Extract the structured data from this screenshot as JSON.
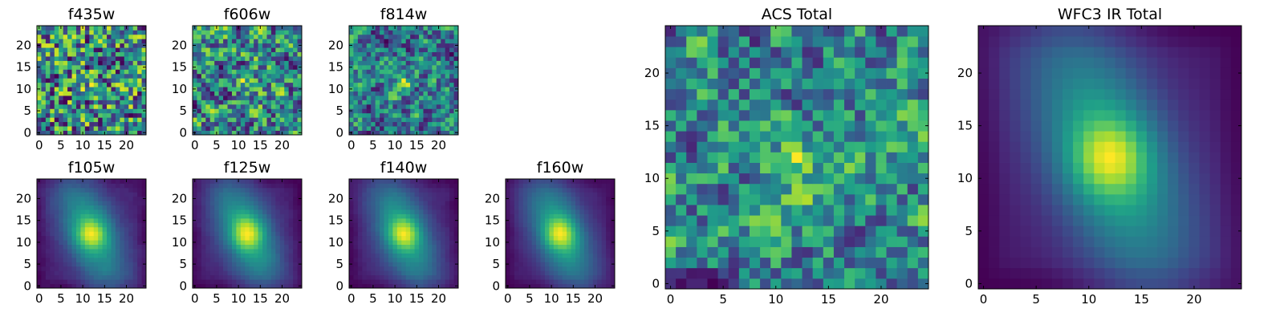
{
  "chart_data": [
    {
      "type": "heatmap",
      "title": "f435w",
      "grid_size": 25,
      "pattern": "noise",
      "smoothness": 0,
      "center": [
        12,
        11
      ],
      "brightness": 0.2,
      "seed": 11,
      "xticks": [
        "0",
        "5",
        "10",
        "15",
        "20"
      ],
      "yticks": [
        "0",
        "5",
        "10",
        "15",
        "20"
      ],
      "xlim": [
        -0.5,
        24.5
      ],
      "ylim": [
        -0.5,
        24.5
      ],
      "colormap": "viridis"
    },
    {
      "type": "heatmap",
      "title": "f606w",
      "grid_size": 25,
      "pattern": "noise",
      "smoothness": 0.35,
      "center": [
        12,
        11
      ],
      "brightness": 0.4,
      "seed": 23,
      "xticks": [
        "0",
        "5",
        "10",
        "15",
        "20"
      ],
      "yticks": [
        "0",
        "5",
        "10",
        "15",
        "20"
      ],
      "xlim": [
        -0.5,
        24.5
      ],
      "ylim": [
        -0.5,
        24.5
      ],
      "colormap": "viridis"
    },
    {
      "type": "heatmap",
      "title": "f814w",
      "grid_size": 25,
      "pattern": "noise",
      "smoothness": 0.45,
      "center": [
        12,
        11
      ],
      "brightness": 0.6,
      "seed": 37,
      "xticks": [
        "0",
        "5",
        "10",
        "15",
        "20"
      ],
      "yticks": [
        "0",
        "5",
        "10",
        "15",
        "20"
      ],
      "xlim": [
        -0.5,
        24.5
      ],
      "ylim": [
        -0.5,
        24.5
      ],
      "colormap": "viridis"
    },
    {
      "type": "heatmap",
      "title": "f105w",
      "grid_size": 25,
      "pattern": "galaxy",
      "smoothness": 0.8,
      "center": [
        12,
        12
      ],
      "brightness": 1,
      "seed": 41,
      "xticks": [
        "0",
        "5",
        "10",
        "15",
        "20"
      ],
      "yticks": [
        "0",
        "5",
        "10",
        "15",
        "20"
      ],
      "xlim": [
        -0.5,
        24.5
      ],
      "ylim": [
        -0.5,
        24.5
      ],
      "colormap": "viridis"
    },
    {
      "type": "heatmap",
      "title": "f125w",
      "grid_size": 25,
      "pattern": "galaxy",
      "smoothness": 0.85,
      "center": [
        12,
        12
      ],
      "brightness": 1,
      "seed": 53,
      "xticks": [
        "0",
        "5",
        "10",
        "15",
        "20"
      ],
      "yticks": [
        "0",
        "5",
        "10",
        "15",
        "20"
      ],
      "xlim": [
        -0.5,
        24.5
      ],
      "ylim": [
        -0.5,
        24.5
      ],
      "colormap": "viridis"
    },
    {
      "type": "heatmap",
      "title": "f140w",
      "grid_size": 25,
      "pattern": "galaxy",
      "smoothness": 0.85,
      "center": [
        12,
        12
      ],
      "brightness": 1,
      "seed": 67,
      "xticks": [
        "0",
        "5",
        "10",
        "15",
        "20"
      ],
      "yticks": [
        "0",
        "5",
        "10",
        "15",
        "20"
      ],
      "xlim": [
        -0.5,
        24.5
      ],
      "ylim": [
        -0.5,
        24.5
      ],
      "colormap": "viridis"
    },
    {
      "type": "heatmap",
      "title": "f160w",
      "grid_size": 25,
      "pattern": "galaxy",
      "smoothness": 0.9,
      "center": [
        12,
        12
      ],
      "brightness": 1,
      "seed": 79,
      "xticks": [
        "0",
        "5",
        "10",
        "15",
        "20"
      ],
      "yticks": [
        "0",
        "5",
        "10",
        "15",
        "20"
      ],
      "xlim": [
        -0.5,
        24.5
      ],
      "ylim": [
        -0.5,
        24.5
      ],
      "colormap": "viridis"
    },
    {
      "type": "heatmap",
      "title": "ACS Total",
      "grid_size": 25,
      "pattern": "noise",
      "smoothness": 0.45,
      "center": [
        12,
        11
      ],
      "brightness": 0.6,
      "seed": 97,
      "xticks": [
        "0",
        "5",
        "10",
        "15",
        "20"
      ],
      "yticks": [
        "0",
        "5",
        "10",
        "15",
        "20"
      ],
      "xlim": [
        -0.5,
        24.5
      ],
      "ylim": [
        -0.5,
        24.5
      ],
      "colormap": "viridis"
    },
    {
      "type": "heatmap",
      "title": "WFC3 IR Total",
      "grid_size": 25,
      "pattern": "galaxy",
      "smoothness": 1,
      "center": [
        12,
        12
      ],
      "brightness": 1,
      "seed": 101,
      "xticks": [
        "0",
        "5",
        "10",
        "15",
        "20"
      ],
      "yticks": [
        "0",
        "5",
        "10",
        "15",
        "20"
      ],
      "xlim": [
        -0.5,
        24.5
      ],
      "ylim": [
        -0.5,
        24.5
      ],
      "colormap": "viridis"
    }
  ]
}
